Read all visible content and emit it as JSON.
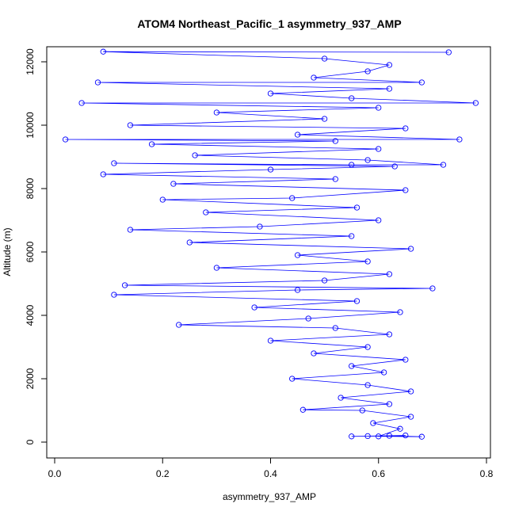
{
  "chart_data": {
    "type": "scatter",
    "title": "ATOM4 Northeast_Pacific_1 asymmetry_937_AMP",
    "xlabel": "asymmetry_937_AMP",
    "ylabel": "Altitude (m)",
    "xlim": [
      0.0,
      0.8
    ],
    "ylim": [
      0,
      12400
    ],
    "x_ticks": [
      0.0,
      0.2,
      0.4,
      0.6,
      0.8
    ],
    "x_tick_labels": [
      "0.0",
      "0.2",
      "0.4",
      "0.6",
      "0.8"
    ],
    "y_ticks": [
      0,
      2000,
      4000,
      6000,
      8000,
      10000,
      12000
    ],
    "y_tick_labels": [
      "0",
      "2000",
      "4000",
      "6000",
      "8000",
      "10000",
      "12000"
    ],
    "grid": false,
    "legend": "none",
    "color": "#0000ff",
    "marker": "open-circle",
    "connected": true,
    "series": [
      {
        "points": [
          [
            0.55,
            180
          ],
          [
            0.62,
            200
          ],
          [
            0.68,
            170
          ],
          [
            0.58,
            190
          ],
          [
            0.65,
            210
          ],
          [
            0.6,
            180
          ],
          [
            0.64,
            420
          ],
          [
            0.59,
            600
          ],
          [
            0.66,
            800
          ],
          [
            0.57,
            1000
          ],
          [
            0.46,
            1020
          ],
          [
            0.62,
            1200
          ],
          [
            0.53,
            1400
          ],
          [
            0.66,
            1600
          ],
          [
            0.58,
            1800
          ],
          [
            0.44,
            2000
          ],
          [
            0.61,
            2200
          ],
          [
            0.55,
            2400
          ],
          [
            0.65,
            2600
          ],
          [
            0.48,
            2800
          ],
          [
            0.58,
            3000
          ],
          [
            0.4,
            3200
          ],
          [
            0.62,
            3400
          ],
          [
            0.52,
            3600
          ],
          [
            0.23,
            3700
          ],
          [
            0.47,
            3900
          ],
          [
            0.64,
            4100
          ],
          [
            0.37,
            4250
          ],
          [
            0.56,
            4450
          ],
          [
            0.11,
            4650
          ],
          [
            0.45,
            4800
          ],
          [
            0.7,
            4850
          ],
          [
            0.13,
            4950
          ],
          [
            0.5,
            5100
          ],
          [
            0.62,
            5300
          ],
          [
            0.3,
            5500
          ],
          [
            0.58,
            5700
          ],
          [
            0.45,
            5900
          ],
          [
            0.66,
            6100
          ],
          [
            0.25,
            6300
          ],
          [
            0.55,
            6500
          ],
          [
            0.14,
            6700
          ],
          [
            0.38,
            6800
          ],
          [
            0.6,
            7000
          ],
          [
            0.28,
            7250
          ],
          [
            0.56,
            7400
          ],
          [
            0.2,
            7650
          ],
          [
            0.44,
            7700
          ],
          [
            0.65,
            7950
          ],
          [
            0.22,
            8150
          ],
          [
            0.52,
            8300
          ],
          [
            0.09,
            8450
          ],
          [
            0.4,
            8600
          ],
          [
            0.63,
            8700
          ],
          [
            0.11,
            8800
          ],
          [
            0.55,
            8750
          ],
          [
            0.72,
            8750
          ],
          [
            0.58,
            8900
          ],
          [
            0.26,
            9050
          ],
          [
            0.6,
            9250
          ],
          [
            0.18,
            9400
          ],
          [
            0.52,
            9500
          ],
          [
            0.02,
            9550
          ],
          [
            0.75,
            9550
          ],
          [
            0.45,
            9700
          ],
          [
            0.65,
            9900
          ],
          [
            0.14,
            10000
          ],
          [
            0.5,
            10200
          ],
          [
            0.3,
            10400
          ],
          [
            0.6,
            10550
          ],
          [
            0.05,
            10700
          ],
          [
            0.78,
            10700
          ],
          [
            0.55,
            10850
          ],
          [
            0.4,
            11000
          ],
          [
            0.62,
            11150
          ],
          [
            0.08,
            11350
          ],
          [
            0.68,
            11350
          ],
          [
            0.48,
            11500
          ],
          [
            0.58,
            11700
          ],
          [
            0.62,
            11900
          ],
          [
            0.5,
            12100
          ],
          [
            0.09,
            12320
          ],
          [
            0.73,
            12300
          ]
        ]
      }
    ]
  }
}
